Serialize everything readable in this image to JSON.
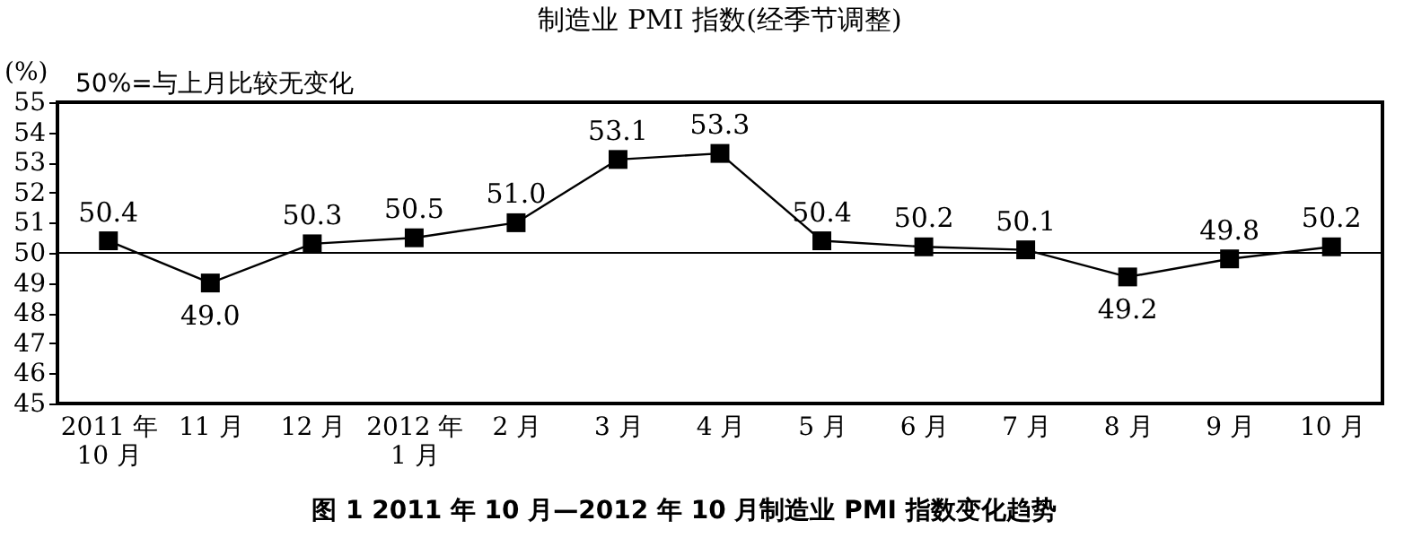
{
  "chart_data": {
    "type": "line",
    "title": "制造业 PMI 指数(经季节调整)",
    "ylabel": "(%)",
    "annotations": [
      "50%=与上月比较无变化",
      "图 1  2011 年 10 月—2012 年 10 月制造业 PMI 指数变化趋势"
    ],
    "categories": [
      "2011 年\n10 月",
      "11 月",
      "12 月",
      "2012 年\n1 月",
      "2 月",
      "3 月",
      "4 月",
      "5 月",
      "6 月",
      "7 月",
      "8 月",
      "9 月",
      "10 月"
    ],
    "series": [
      {
        "color": "#000000",
        "values": [
          50.4,
          49.0,
          50.3,
          50.5,
          51.0,
          53.1,
          53.3,
          50.4,
          50.2,
          50.1,
          49.2,
          49.8,
          50.2
        ]
      }
    ],
    "ylim": [
      45,
      55
    ],
    "yticks": [
      45,
      46,
      47,
      48,
      49,
      50,
      51,
      52,
      53,
      54,
      55
    ],
    "ref_lines": [
      {
        "axis": "y",
        "value": 50,
        "color": "#000000"
      }
    ],
    "value_labels": [
      "50.4",
      "49.0",
      "50.3",
      "50.5",
      "51.0",
      "53.1",
      "53.3",
      "50.4",
      "50.2",
      "50.1",
      "49.2",
      "49.8",
      "50.2"
    ],
    "marker": "square",
    "line_style": "solid",
    "grid": false
  }
}
